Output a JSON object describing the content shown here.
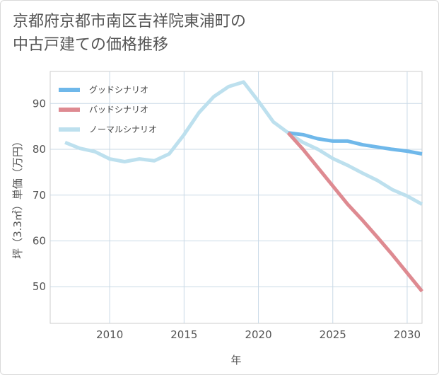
{
  "chart_data": {
    "type": "line",
    "title_lines": [
      "京都府京都市南区吉祥院東浦町の",
      "中古戸建ての価格推移"
    ],
    "xlabel": "年",
    "ylabel": "坪（3.3㎡）単価（万円）",
    "xlim": [
      2006,
      2031
    ],
    "ylim": [
      42,
      97
    ],
    "x_ticks": [
      2010,
      2015,
      2020,
      2025,
      2030
    ],
    "y_ticks": [
      50,
      60,
      70,
      80,
      90
    ],
    "grid": true,
    "legend_position": "top-left",
    "series": [
      {
        "name": "グッドシナリオ",
        "color": "#6fb8ea",
        "x": [
          2022,
          2023,
          2024,
          2025,
          2026,
          2027,
          2028,
          2029,
          2030,
          2031
        ],
        "y": [
          83.6,
          83.2,
          82.3,
          81.8,
          81.8,
          81.0,
          80.5,
          80.0,
          79.6,
          79.0
        ]
      },
      {
        "name": "バッドシナリオ",
        "color": "#de8a91",
        "x": [
          2022,
          2023,
          2024,
          2025,
          2026,
          2027,
          2028,
          2029,
          2030,
          2031
        ],
        "y": [
          83.6,
          80.0,
          76.0,
          72.0,
          68.0,
          64.5,
          60.8,
          57.0,
          53.0,
          49.0
        ]
      },
      {
        "name": "ノーマルシナリオ",
        "color": "#bde0ee",
        "x": [
          2007,
          2008,
          2009,
          2010,
          2011,
          2012,
          2013,
          2014,
          2015,
          2016,
          2017,
          2018,
          2019,
          2020,
          2021,
          2022,
          2023,
          2024,
          2025,
          2026,
          2027,
          2028,
          2029,
          2030,
          2031
        ],
        "y": [
          81.5,
          80.2,
          79.5,
          77.9,
          77.3,
          77.9,
          77.5,
          79.0,
          83.2,
          88.0,
          91.5,
          93.7,
          94.7,
          90.5,
          86.0,
          83.6,
          81.5,
          80.0,
          78.0,
          76.5,
          74.8,
          73.2,
          71.2,
          69.8,
          68.0
        ]
      }
    ]
  }
}
